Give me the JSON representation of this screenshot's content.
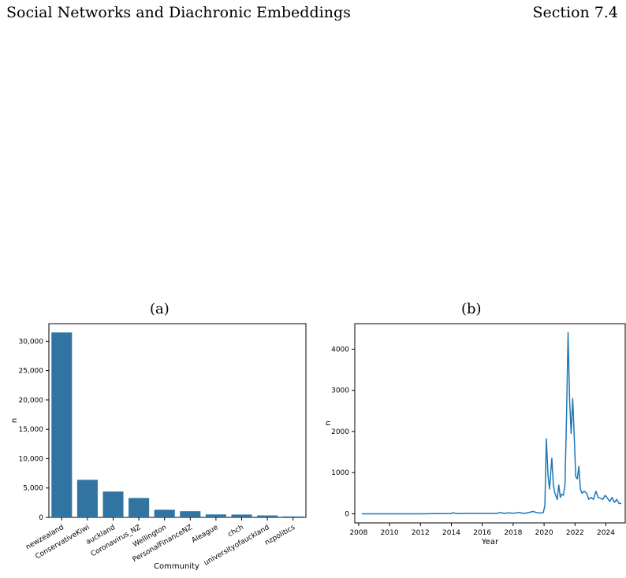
{
  "header": {
    "title": "Social Networks and Diachronic Embeddings",
    "section": "Section 7.4"
  },
  "chart_data": [
    {
      "panel_label": "(a)",
      "type": "bar",
      "categories": [
        "newzealand",
        "ConservativeKiwi",
        "auckland",
        "Coronavirus_NZ",
        "Wellington",
        "PersonalFinanceNZ",
        "Aleague",
        "chch",
        "universityofauckland",
        "nzpolitics"
      ],
      "values": [
        31500,
        6400,
        4400,
        3300,
        1300,
        1050,
        500,
        480,
        330,
        160
      ],
      "xlabel": "Community",
      "ylabel": "n",
      "ylim": [
        0,
        33000
      ],
      "yticks": [
        0,
        5000,
        10000,
        15000,
        20000,
        25000,
        30000
      ],
      "ytick_labels": [
        "0",
        "5,000",
        "10,000",
        "15,000",
        "20,000",
        "25,000",
        "30,000"
      ],
      "color": "#3274a1",
      "grid": false
    },
    {
      "panel_label": "(b)",
      "type": "line",
      "xlabel": "Year",
      "ylabel": "n",
      "xlim": [
        2007.75,
        2025.25
      ],
      "ylim": [
        -220,
        4620
      ],
      "xticks": [
        2008,
        2010,
        2012,
        2014,
        2016,
        2018,
        2020,
        2022,
        2024
      ],
      "yticks": [
        0,
        1000,
        2000,
        3000,
        4000
      ],
      "color": "#1f77b4",
      "grid": false,
      "series": [
        {
          "x": [
            2008.2,
            2009,
            2010,
            2011,
            2012,
            2013,
            2014,
            2014.1,
            2014.3,
            2015,
            2016,
            2016.9,
            2017.2,
            2017.4,
            2017.7,
            2018,
            2018.4,
            2018.7,
            2019,
            2019.3,
            2019.5,
            2019.7,
            2019.95,
            2020.05,
            2020.15,
            2020.25,
            2020.35,
            2020.5,
            2020.6,
            2020.7,
            2020.85,
            2020.95,
            2021.05,
            2021.15,
            2021.25,
            2021.35,
            2021.45,
            2021.55,
            2021.65,
            2021.75,
            2021.85,
            2021.95,
            2022.05,
            2022.15,
            2022.25,
            2022.35,
            2022.45,
            2022.6,
            2022.75,
            2022.9,
            2023.05,
            2023.2,
            2023.35,
            2023.5,
            2023.65,
            2023.8,
            2023.95,
            2024.1,
            2024.25,
            2024.4,
            2024.55,
            2024.7,
            2024.85,
            2025.0
          ],
          "y": [
            0,
            0,
            0,
            0,
            0,
            5,
            5,
            30,
            5,
            10,
            10,
            10,
            30,
            10,
            25,
            15,
            30,
            10,
            30,
            60,
            30,
            20,
            30,
            200,
            1820,
            950,
            600,
            1350,
            700,
            500,
            350,
            700,
            400,
            480,
            450,
            700,
            2300,
            4400,
            2800,
            1950,
            2800,
            1900,
            900,
            850,
            1150,
            600,
            500,
            550,
            500,
            350,
            400,
            350,
            550,
            400,
            380,
            350,
            450,
            380,
            300,
            400,
            280,
            350,
            250,
            250
          ]
        }
      ]
    }
  ]
}
